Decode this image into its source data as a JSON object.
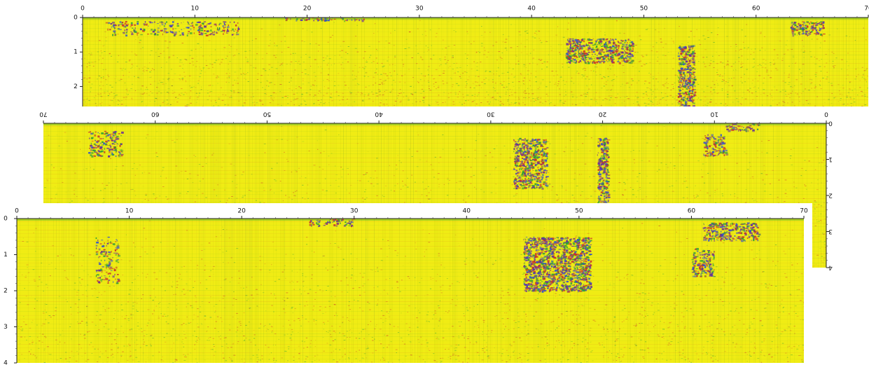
{
  "chart_data": [
    {
      "type": "heatmap",
      "panel": "profile-1",
      "orientation": "normal",
      "x_ticks": [
        "0",
        "10",
        "20",
        "30",
        "40",
        "50",
        "60",
        "70"
      ],
      "y_ticks": [
        "0",
        "1",
        "2"
      ],
      "xlim": [
        0,
        70
      ],
      "ylim": [
        0,
        2.6
      ],
      "colors": {
        "background": "#f0ec14",
        "secondary": "#d8dc10",
        "red": "#c8302a",
        "green": "#2f9e36",
        "purple": "#6a2a9a",
        "blue": "#3050d0"
      },
      "anomalies": [
        {
          "x": [
            43,
            49
          ],
          "y": [
            0.6,
            1.3
          ],
          "strength": 0.9
        },
        {
          "x": [
            53,
            54.5
          ],
          "y": [
            0.8,
            2.6
          ],
          "strength": 1.0
        },
        {
          "x": [
            63,
            66
          ],
          "y": [
            0.1,
            0.5
          ],
          "strength": 0.7
        },
        {
          "x": [
            2,
            14
          ],
          "y": [
            0.1,
            0.5
          ],
          "strength": 0.35
        },
        {
          "x": [
            18,
            25
          ],
          "y": [
            0,
            0.08
          ],
          "strength": 0.5
        }
      ]
    },
    {
      "type": "heatmap",
      "panel": "profile-2",
      "orientation": "mirrored",
      "x_ticks": [
        "70",
        "60",
        "50",
        "40",
        "30",
        "20",
        "10",
        "0"
      ],
      "y_ticks": [
        "0",
        "1",
        "2",
        "3",
        "4"
      ],
      "xlim": [
        70,
        0
      ],
      "ylim": [
        0,
        4
      ],
      "colors": {
        "background": "#f0ec14",
        "secondary": "#d8dc10",
        "red": "#c8302a",
        "green": "#2f9e36",
        "purple": "#6a2a9a",
        "blue": "#3050d0"
      },
      "anomalies": [
        {
          "x": [
            25,
            28
          ],
          "y": [
            0.4,
            1.8
          ],
          "strength": 0.9
        },
        {
          "x": [
            19.5,
            20.5
          ],
          "y": [
            0.4,
            2.5
          ],
          "strength": 1.0
        },
        {
          "x": [
            9,
            11
          ],
          "y": [
            0.3,
            0.9
          ],
          "strength": 0.6
        },
        {
          "x": [
            6,
            9
          ],
          "y": [
            0,
            0.2
          ],
          "strength": 0.5
        },
        {
          "x": [
            63,
            66
          ],
          "y": [
            0.2,
            0.9
          ],
          "strength": 0.5
        }
      ]
    },
    {
      "type": "heatmap",
      "panel": "profile-3",
      "orientation": "normal",
      "x_ticks": [
        "0",
        "10",
        "20",
        "30",
        "40",
        "50",
        "60",
        "70"
      ],
      "y_ticks": [
        "0",
        "1",
        "2",
        "3",
        "4"
      ],
      "xlim": [
        0,
        70
      ],
      "ylim": [
        0,
        4
      ],
      "colors": {
        "background": "#f0ec14",
        "secondary": "#d8dc10",
        "red": "#c8302a",
        "green": "#2f9e36",
        "purple": "#6a2a9a",
        "blue": "#3050d0"
      },
      "anomalies": [
        {
          "x": [
            45,
            51
          ],
          "y": [
            0.5,
            2.0
          ],
          "strength": 1.0
        },
        {
          "x": [
            60,
            62
          ],
          "y": [
            0.8,
            1.6
          ],
          "strength": 0.7
        },
        {
          "x": [
            61,
            66
          ],
          "y": [
            0.1,
            0.6
          ],
          "strength": 0.8
        },
        {
          "x": [
            26,
            30
          ],
          "y": [
            0,
            0.2
          ],
          "strength": 0.5
        },
        {
          "x": [
            7,
            9
          ],
          "y": [
            0.5,
            1.8
          ],
          "strength": 0.3
        }
      ]
    }
  ]
}
